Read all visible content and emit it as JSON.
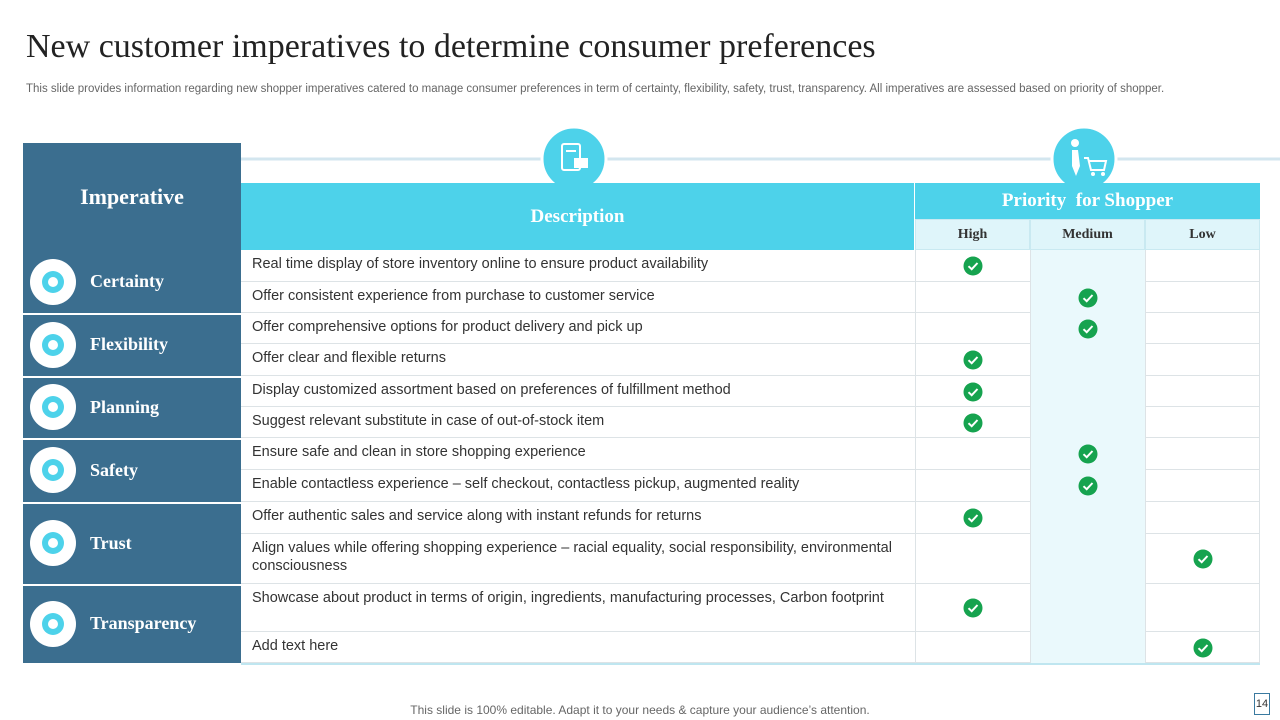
{
  "header": {
    "title": "New customer imperatives to determine consumer preferences",
    "subtitle": "This slide provides information regarding new shopper imperatives catered to manage consumer preferences in term of certainty, flexibility, safety, trust, transparency. All imperatives are assessed based on priority of shopper."
  },
  "table": {
    "columns": {
      "imperative": "Imperative",
      "description": "Description",
      "priority": "Priority  for Shopper",
      "levels": [
        "High",
        "Medium",
        "Low"
      ]
    },
    "groups": [
      {
        "name": "Certainty",
        "rows": [
          {
            "description": "Real time display of store inventory online to ensure product availability",
            "priority": "High"
          },
          {
            "description": "Offer consistent experience from purchase to customer service",
            "priority": "Medium"
          }
        ]
      },
      {
        "name": "Flexibility",
        "rows": [
          {
            "description": "Offer comprehensive options for product delivery and pick up",
            "priority": "Medium"
          },
          {
            "description": "Offer clear and flexible returns",
            "priority": "High"
          }
        ]
      },
      {
        "name": "Planning",
        "rows": [
          {
            "description": "Display customized assortment based on preferences of fulfillment method",
            "priority": "High"
          },
          {
            "description": "Suggest relevant substitute in case of out-of-stock item",
            "priority": "High"
          }
        ]
      },
      {
        "name": "Safety",
        "rows": [
          {
            "description": "Ensure safe and clean in store shopping experience",
            "priority": "Medium"
          },
          {
            "description": "Enable contactless experience – self checkout, contactless pickup, augmented reality",
            "priority": "Medium"
          }
        ]
      },
      {
        "name": "Trust",
        "rows": [
          {
            "description": "Offer authentic sales and service along with instant refunds for returns",
            "priority": "High"
          },
          {
            "description": "Align values while offering shopping experience – racial equality, social responsibility, environmental consciousness",
            "priority": "Low"
          }
        ]
      },
      {
        "name": "Transparency",
        "rows": [
          {
            "description": "Showcase about product in terms of origin, ingredients, manufacturing processes, Carbon footprint",
            "priority": "High"
          },
          {
            "description": "Add text here",
            "priority": "Low"
          }
        ]
      }
    ]
  },
  "footer": {
    "note": "This slide is 100% editable. Adapt it to your needs & capture your audience’s attention.",
    "page": 14
  }
}
